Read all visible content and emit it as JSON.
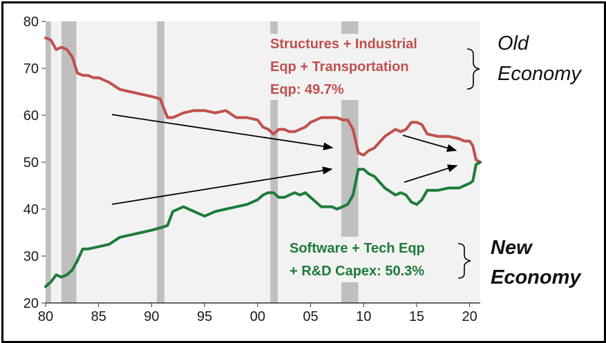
{
  "chart_data": {
    "type": "line",
    "title": "",
    "xlabel": "",
    "ylabel": "",
    "xlim": [
      1980,
      2021
    ],
    "ylim": [
      20,
      80
    ],
    "x_tick_labels": [
      "80",
      "85",
      "90",
      "95",
      "00",
      "05",
      "10",
      "15",
      "20"
    ],
    "x_tick_values": [
      1980,
      1985,
      1990,
      1995,
      2000,
      2005,
      2010,
      2015,
      2020
    ],
    "y_ticks": [
      20,
      30,
      40,
      50,
      60,
      70,
      80
    ],
    "grid": false,
    "recessions": [
      [
        1980.0,
        1980.5
      ],
      [
        1981.5,
        1982.9
      ],
      [
        1990.5,
        1991.2
      ],
      [
        2001.2,
        2001.9
      ],
      [
        2007.9,
        2009.5
      ]
    ],
    "series": [
      {
        "name": "Structures + Industrial Eqp + Transportation Eqp",
        "color": "#c0504d",
        "x": [
          1980.0,
          1980.5,
          1981.0,
          1981.5,
          1982.0,
          1982.5,
          1983.0,
          1983.5,
          1984.0,
          1984.5,
          1985.0,
          1986.0,
          1987.0,
          1988.0,
          1989.0,
          1990.0,
          1990.8,
          1991.5,
          1992.0,
          1993.0,
          1994.0,
          1995.0,
          1996.0,
          1997.0,
          1998.0,
          1999.0,
          2000.0,
          2000.5,
          2001.0,
          2001.5,
          2002.0,
          2002.5,
          2003.0,
          2003.5,
          2004.0,
          2004.5,
          2005.0,
          2006.0,
          2006.5,
          2007.0,
          2007.5,
          2008.0,
          2008.5,
          2009.0,
          2009.5,
          2010.0,
          2010.5,
          2011.0,
          2012.0,
          2013.0,
          2013.5,
          2014.0,
          2014.5,
          2015.0,
          2015.5,
          2016.0,
          2017.0,
          2018.0,
          2019.0,
          2019.5,
          2020.0,
          2020.3,
          2020.6,
          2021.0
        ],
        "y": [
          76.5,
          76,
          74,
          74.5,
          74,
          72.5,
          69,
          68.5,
          68.5,
          68,
          68,
          67,
          65.5,
          65,
          64.5,
          64,
          63.5,
          59.5,
          59.5,
          60.5,
          61,
          61,
          60.5,
          61,
          59.5,
          59.5,
          59,
          57.5,
          57,
          56,
          57,
          57,
          56.5,
          56.5,
          57,
          57.5,
          58.5,
          59.5,
          59.5,
          59.5,
          59.5,
          59,
          59,
          57,
          52,
          51.5,
          52.5,
          53,
          55.5,
          57,
          56.5,
          57,
          58.5,
          58.5,
          58,
          56,
          55.5,
          55.5,
          55,
          54.5,
          54.5,
          53.5,
          50.5,
          50
        ]
      },
      {
        "name": "Software + Tech Eqp + R&D Capex",
        "color": "#1e7b3a",
        "x": [
          1980.0,
          1980.5,
          1981.0,
          1981.5,
          1982.0,
          1982.5,
          1983.0,
          1983.5,
          1984.0,
          1985.0,
          1986.0,
          1987.0,
          1988.0,
          1989.0,
          1990.0,
          1990.8,
          1991.5,
          1992.0,
          1993.0,
          1994.0,
          1995.0,
          1996.0,
          1997.0,
          1998.0,
          1999.0,
          2000.0,
          2000.5,
          2001.0,
          2001.5,
          2002.0,
          2002.5,
          2003.0,
          2003.5,
          2004.0,
          2004.5,
          2005.0,
          2005.5,
          2006.0,
          2006.5,
          2007.0,
          2007.5,
          2008.0,
          2008.5,
          2009.0,
          2009.5,
          2010.0,
          2010.5,
          2011.0,
          2012.0,
          2013.0,
          2013.5,
          2014.0,
          2014.5,
          2015.0,
          2015.5,
          2016.0,
          2017.0,
          2018.0,
          2019.0,
          2019.5,
          2020.0,
          2020.3,
          2020.6,
          2021.0
        ],
        "y": [
          23.5,
          24.5,
          26,
          25.5,
          26,
          27,
          29,
          31.5,
          31.5,
          32,
          32.5,
          34,
          34.5,
          35,
          35.5,
          36,
          36.5,
          39.5,
          40.5,
          39.5,
          38.5,
          39.5,
          40,
          40.5,
          41,
          42,
          43,
          43.5,
          43.5,
          42.5,
          42.5,
          43,
          43.5,
          43,
          43.5,
          42.5,
          41.5,
          40.5,
          40.5,
          40.5,
          40,
          40.5,
          41,
          43,
          48.5,
          48.5,
          47.5,
          47,
          44.5,
          43,
          43.5,
          43,
          41.5,
          41,
          42,
          44,
          44,
          44.5,
          44.5,
          45,
          45.5,
          46,
          49.5,
          50
        ]
      }
    ],
    "annotations": {
      "old_label": [
        "Structures + Industrial",
        "Eqp + Transportation",
        "Eqp: 49.7%"
      ],
      "new_label": [
        "Software + Tech Eqp",
        "+ R&D Capex: 50.3%"
      ],
      "old_economy": [
        "Old",
        "Economy"
      ],
      "new_economy": [
        "New",
        "Economy"
      ]
    }
  }
}
